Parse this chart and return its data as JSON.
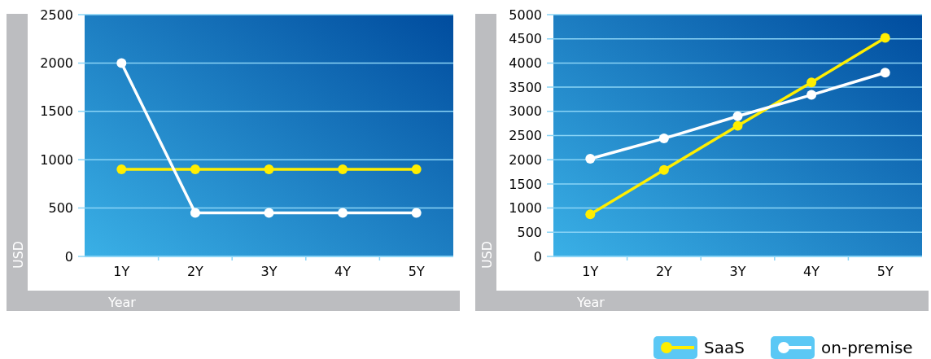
{
  "chart_data": [
    {
      "type": "line",
      "xlabel": "Year",
      "ylabel": "USD",
      "categories": [
        "1Y",
        "2Y",
        "3Y",
        "4Y",
        "5Y"
      ],
      "ylim": [
        0,
        2500
      ],
      "yticks": [
        0,
        500,
        1000,
        1500,
        2000,
        2500
      ],
      "grid": "y",
      "marker": "circle",
      "legend": false,
      "series": [
        {
          "color": "#ffee00",
          "values": [
            900,
            900,
            900,
            900,
            900
          ]
        },
        {
          "color": "#ffffff",
          "values": [
            2000,
            450,
            450,
            450,
            450
          ]
        }
      ]
    },
    {
      "type": "line",
      "xlabel": "Year",
      "ylabel": "USD",
      "categories": [
        "1Y",
        "2Y",
        "3Y",
        "4Y",
        "5Y"
      ],
      "ylim": [
        0,
        5000
      ],
      "yticks": [
        0,
        500,
        1000,
        1500,
        2000,
        2500,
        3000,
        3500,
        4000,
        4500,
        5000
      ],
      "grid": "y",
      "marker": "circle",
      "legend": "bottom right",
      "series": [
        {
          "name": "SaaS",
          "color": "#ffee00",
          "values": [
            870,
            1790,
            2700,
            3600,
            4520
          ]
        },
        {
          "name": "on-premise",
          "color": "#ffffff",
          "values": [
            2020,
            2440,
            2900,
            3340,
            3800
          ]
        }
      ]
    }
  ]
}
